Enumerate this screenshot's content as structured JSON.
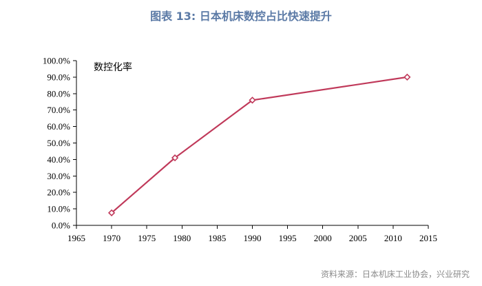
{
  "figure_title": "图表 13: 日本机床数控占比快速提升",
  "source_note": "资料来源：日本机床工业协会，兴业研究",
  "chart_data": {
    "type": "line",
    "title": "",
    "xlabel": "",
    "ylabel": "",
    "series": [
      {
        "name": "数控化率",
        "color": "#c0395a",
        "x": [
          1970,
          1979,
          1990,
          2012
        ],
        "values": [
          7.6,
          41.0,
          76.0,
          90.0
        ]
      }
    ],
    "xlim": [
      1965,
      2015
    ],
    "xticks": [
      1965,
      1970,
      1975,
      1980,
      1985,
      1990,
      1995,
      2000,
      2005,
      2010,
      2015
    ],
    "ylim": [
      0,
      100
    ],
    "yticks": [
      0,
      10,
      20,
      30,
      40,
      50,
      60,
      70,
      80,
      90,
      100
    ],
    "ytick_labels": [
      "0.0%",
      "10.0%",
      "20.0%",
      "30.0%",
      "40.0%",
      "50.0%",
      "60.0%",
      "70.0%",
      "80.0%",
      "90.0%",
      "100.0%"
    ],
    "grid": false,
    "legend": "top-left"
  }
}
